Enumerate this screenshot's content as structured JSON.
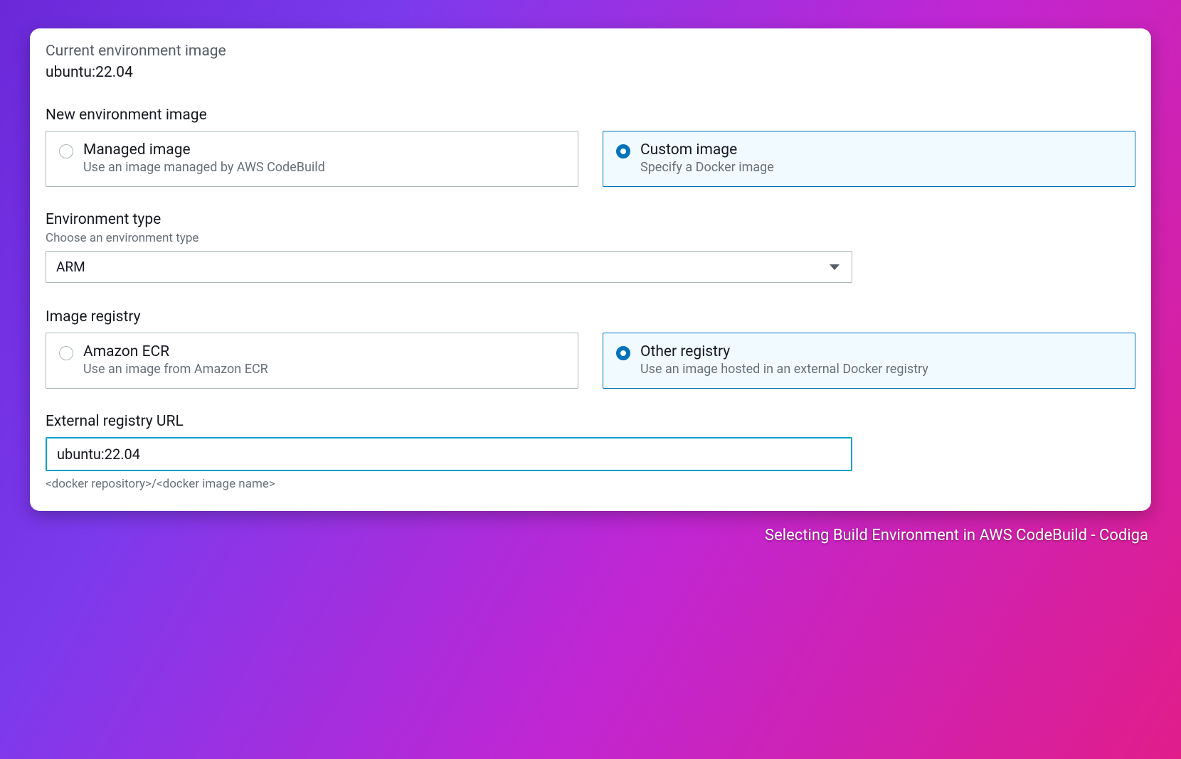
{
  "colors": {
    "background_gradient": [
      "#6a28d9",
      "#7c3aed",
      "#c026d3",
      "#e11d8a"
    ],
    "panel_bg": "#ffffff",
    "text_primary": "#16191f",
    "text_muted": "#545b64",
    "text_hint": "#687078",
    "border_default": "#aab7b8",
    "border_selected": "#0073bb",
    "selected_bg": "#f1faff",
    "input_focus_border": "#00a1c9",
    "caption_color": "#ffffff"
  },
  "current_env": {
    "label": "Current environment image",
    "value": "ubuntu:22.04"
  },
  "new_env": {
    "label": "New environment image",
    "options": [
      {
        "key": "managed",
        "title": "Managed image",
        "desc": "Use an image managed by AWS CodeBuild",
        "selected": false
      },
      {
        "key": "custom",
        "title": "Custom image",
        "desc": "Specify a Docker image",
        "selected": true
      }
    ]
  },
  "env_type": {
    "label": "Environment type",
    "hint": "Choose an environment type",
    "value": "ARM"
  },
  "image_registry": {
    "label": "Image registry",
    "options": [
      {
        "key": "ecr",
        "title": "Amazon ECR",
        "desc": "Use an image from Amazon ECR",
        "selected": false
      },
      {
        "key": "other",
        "title": "Other registry",
        "desc": "Use an image hosted in an external Docker registry",
        "selected": true
      }
    ]
  },
  "external_url": {
    "label": "External registry URL",
    "value": "ubuntu:22.04",
    "help": "<docker repository>/<docker image name>"
  },
  "caption": "Selecting Build Environment in AWS CodeBuild - Codiga"
}
